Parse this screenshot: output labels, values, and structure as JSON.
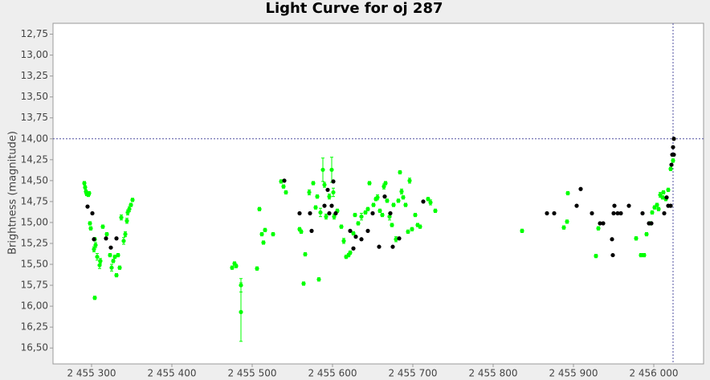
{
  "chart_data": {
    "type": "scatter",
    "title": "Light Curve for oj 287",
    "y_label": "Brightness (magnitude)",
    "xlim": [
      2455252,
      2456062
    ],
    "ylim": [
      12.62,
      16.69
    ],
    "y_inverted": true,
    "grid": false,
    "crosshair": {
      "x": 2456024,
      "y": 14.0
    },
    "xticks": [
      {
        "value": 2455300,
        "label": "2 455 300"
      },
      {
        "value": 2455400,
        "label": "2 455 400"
      },
      {
        "value": 2455500,
        "label": "2 455 500"
      },
      {
        "value": 2455600,
        "label": "2 455 600"
      },
      {
        "value": 2455700,
        "label": "2 455 700"
      },
      {
        "value": 2455800,
        "label": "2 455 800"
      },
      {
        "value": 2455900,
        "label": "2 455 900"
      },
      {
        "value": 2456000,
        "label": "2 456 000"
      }
    ],
    "yticks": [
      {
        "value": 12.75,
        "label": "12,75"
      },
      {
        "value": 13.0,
        "label": "13,00"
      },
      {
        "value": 13.25,
        "label": "13,25"
      },
      {
        "value": 13.5,
        "label": "13,50"
      },
      {
        "value": 13.75,
        "label": "13,75"
      },
      {
        "value": 14.0,
        "label": "14,00"
      },
      {
        "value": 14.25,
        "label": "14,25"
      },
      {
        "value": 14.5,
        "label": "14,50"
      },
      {
        "value": 14.75,
        "label": "14,75"
      },
      {
        "value": 15.0,
        "label": "15,00"
      },
      {
        "value": 15.25,
        "label": "15,25"
      },
      {
        "value": 15.5,
        "label": "15,50"
      },
      {
        "value": 15.75,
        "label": "15,75"
      },
      {
        "value": 16.0,
        "label": "16,00"
      },
      {
        "value": 16.25,
        "label": "16,25"
      },
      {
        "value": 16.5,
        "label": "16,50"
      }
    ],
    "series": [
      {
        "color": "#00ff00",
        "x": [
          2455291,
          2455292,
          2455293,
          2455294,
          2455296,
          2455297,
          2455298,
          2455299,
          2455303,
          2455304,
          2455305,
          2455307,
          2455310,
          2455311,
          2455314,
          2455319,
          2455323,
          2455325,
          2455327,
          2455329,
          2455331,
          2455333,
          2455335,
          2455337,
          2455340,
          2455342,
          2455344,
          2455345,
          2455347,
          2455349,
          2455351,
          2455304,
          2455475,
          2455478,
          2455480,
          2455486,
          2455486,
          2455506,
          2455509,
          2455512,
          2455514,
          2455516,
          2455526,
          2455536,
          2455539,
          2455542,
          2455559,
          2455561,
          2455564,
          2455566,
          2455571,
          2455576,
          2455579,
          2455581,
          2455583,
          2455585,
          2455588,
          2455590,
          2455592,
          2455596,
          2455599,
          2455601,
          2455602,
          2455606,
          2455611,
          2455614,
          2455617,
          2455620,
          2455622,
          2455626,
          2455628,
          2455632,
          2455636,
          2455641,
          2455644,
          2455646,
          2455651,
          2455654,
          2455656,
          2455659,
          2455662,
          2455664,
          2455666,
          2455668,
          2455671,
          2455674,
          2455676,
          2455679,
          2455682,
          2455684,
          2455686,
          2455688,
          2455691,
          2455694,
          2455696,
          2455699,
          2455703,
          2455706,
          2455709,
          2455719,
          2455722,
          2455728,
          2455836,
          2455888,
          2455892,
          2455893,
          2455928,
          2455931,
          2455978,
          2455984,
          2455988,
          2455991,
          2455996,
          2455998,
          2456001,
          2456004,
          2456006,
          2456008,
          2456011,
          2456012,
          2456015,
          2456018,
          2456021,
          2456024
        ],
        "values": [
          14.53,
          14.58,
          14.63,
          14.66,
          14.67,
          14.65,
          15.01,
          15.07,
          15.32,
          15.2,
          15.27,
          15.41,
          15.51,
          15.46,
          15.05,
          15.14,
          15.39,
          15.54,
          15.46,
          15.41,
          15.63,
          15.39,
          15.54,
          14.94,
          15.22,
          15.14,
          14.98,
          14.88,
          14.84,
          14.79,
          14.73,
          15.9,
          15.54,
          15.49,
          15.52,
          15.75,
          16.07,
          15.55,
          14.84,
          15.14,
          15.24,
          15.09,
          15.14,
          14.51,
          14.57,
          14.64,
          15.08,
          15.11,
          15.73,
          15.38,
          14.64,
          14.53,
          14.82,
          14.69,
          15.68,
          14.88,
          14.37,
          14.55,
          14.93,
          14.69,
          14.37,
          14.64,
          14.93,
          14.86,
          15.05,
          15.22,
          15.41,
          15.39,
          15.36,
          15.13,
          14.91,
          15.01,
          14.93,
          14.88,
          14.84,
          14.53,
          14.79,
          14.72,
          14.7,
          14.86,
          14.91,
          14.57,
          14.53,
          14.74,
          14.93,
          15.03,
          14.79,
          15.2,
          14.74,
          14.4,
          14.63,
          14.7,
          14.79,
          15.11,
          14.5,
          15.08,
          14.91,
          15.03,
          15.05,
          14.72,
          14.76,
          14.86,
          15.1,
          15.06,
          14.99,
          14.65,
          15.4,
          15.07,
          15.19,
          15.39,
          15.39,
          15.14,
          15.01,
          14.88,
          14.82,
          14.79,
          14.84,
          14.67,
          14.7,
          14.64,
          14.72,
          14.61,
          14.36,
          14.26
        ],
        "errors": [
          0.02,
          0.02,
          0.02,
          0.02,
          0.02,
          0.02,
          0.02,
          0.02,
          0.03,
          0.02,
          0.03,
          0.04,
          0.04,
          0.03,
          0.02,
          0.02,
          0.02,
          0.04,
          0.02,
          0.02,
          0.02,
          0.02,
          0.02,
          0.03,
          0.04,
          0.03,
          0.03,
          0.03,
          0.03,
          0.02,
          0.02,
          0.02,
          0.02,
          0.02,
          0.02,
          0.08,
          0.35,
          0.02,
          0.02,
          0.02,
          0.02,
          0.02,
          0.02,
          0.02,
          0.02,
          0.02,
          0.02,
          0.02,
          0.02,
          0.02,
          0.03,
          0.02,
          0.02,
          0.02,
          0.02,
          0.05,
          0.14,
          0.03,
          0.03,
          0.03,
          0.15,
          0.05,
          0.03,
          0.02,
          0.02,
          0.03,
          0.02,
          0.02,
          0.02,
          0.02,
          0.02,
          0.02,
          0.04,
          0.02,
          0.02,
          0.02,
          0.02,
          0.02,
          0.03,
          0.02,
          0.02,
          0.03,
          0.02,
          0.02,
          0.04,
          0.02,
          0.02,
          0.03,
          0.02,
          0.02,
          0.03,
          0.02,
          0.02,
          0.02,
          0.03,
          0.02,
          0.02,
          0.02,
          0.02,
          0.02,
          0.03,
          0.02,
          0.02,
          0.02,
          0.02,
          0.02,
          0.02,
          0.02,
          0.02,
          0.02,
          0.02,
          0.02,
          0.02,
          0.02,
          0.02,
          0.02,
          0.02,
          0.03,
          0.02,
          0.02,
          0.02,
          0.02,
          0.02,
          0.02
        ]
      },
      {
        "color": "#000000",
        "x": [
          2455295,
          2455301,
          2455303,
          2455318,
          2455324,
          2455331,
          2455540,
          2455559,
          2455572,
          2455574,
          2455590,
          2455594,
          2455596,
          2455599,
          2455601,
          2455604,
          2455622,
          2455626,
          2455629,
          2455636,
          2455644,
          2455650,
          2455658,
          2455665,
          2455672,
          2455675,
          2455683,
          2455713,
          2455867,
          2455876,
          2455904,
          2455909,
          2455923,
          2455933,
          2455937,
          2455948,
          2455949,
          2455950,
          2455951,
          2455955,
          2455959,
          2455969,
          2455986,
          2455994,
          2455997,
          2456013,
          2456016,
          2456018,
          2456021,
          2456022,
          2456023,
          2456024,
          2456025,
          2456025
        ],
        "values": [
          14.81,
          14.89,
          15.2,
          15.19,
          15.3,
          15.19,
          14.5,
          14.89,
          14.89,
          15.1,
          14.8,
          14.61,
          14.89,
          14.8,
          14.51,
          14.89,
          15.1,
          15.31,
          15.17,
          15.2,
          15.1,
          14.89,
          15.29,
          14.69,
          14.89,
          15.29,
          15.19,
          14.75,
          14.89,
          14.89,
          14.8,
          14.6,
          14.89,
          15.01,
          15.01,
          15.2,
          15.39,
          14.89,
          14.8,
          14.89,
          14.89,
          14.8,
          14.89,
          15.01,
          15.01,
          14.89,
          14.7,
          14.8,
          14.8,
          14.31,
          14.19,
          14.1,
          14.19,
          14.0
        ]
      }
    ]
  }
}
